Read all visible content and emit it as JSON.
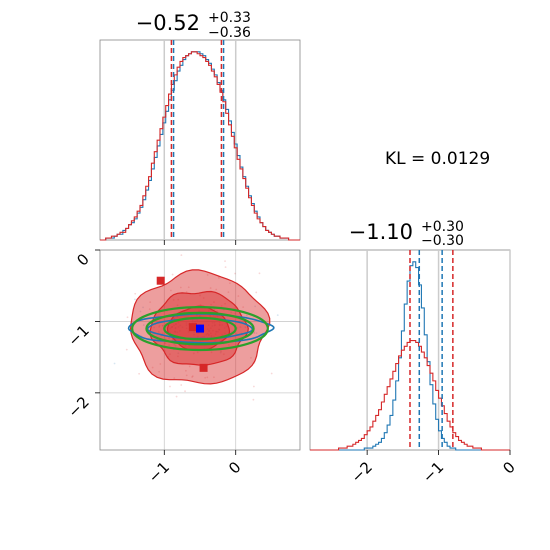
{
  "chart_data": {
    "type": "corner",
    "annotation": "KL = 0.0129",
    "colors": {
      "red": "#d62728",
      "blue": "#1f77b4",
      "green": "#2ca02c",
      "grid": "#cccccc"
    },
    "params": [
      {
        "title_main": "−0.52",
        "title_plus": "+0.33",
        "title_minus": "−0.36",
        "median": -0.52,
        "range": [
          -1.9,
          0.9
        ],
        "ticks": [
          {
            "v": -1,
            "label": "−1"
          },
          {
            "v": 0,
            "label": "0"
          }
        ],
        "red_quantiles": [
          -0.9,
          -0.2
        ],
        "blue_quantiles": [
          -0.87,
          -0.17
        ]
      },
      {
        "title_main": "−1.10",
        "title_plus": "+0.30",
        "title_minus": "−0.30",
        "median": -1.1,
        "range": [
          -2.8,
          0.0
        ],
        "ticks": [
          {
            "v": -2,
            "label": "−2"
          },
          {
            "v": -1,
            "label": "−1"
          },
          {
            "v": 0,
            "label": "0"
          }
        ],
        "red_quantiles": [
          -1.4,
          -0.8
        ],
        "blue_quantiles": [
          -1.27,
          -0.95
        ]
      }
    ],
    "series": [
      {
        "name": "red",
        "color": "#d62728",
        "mean_x": -0.52,
        "mean_y": -1.1,
        "sd_x": 0.34,
        "sd_y": 0.3
      },
      {
        "name": "blue",
        "color": "#1f77b4",
        "mean_x": -0.5,
        "mean_y": -1.1,
        "sd_x": 0.34,
        "sd_y": 0.1
      }
    ],
    "markers": [
      {
        "color": "#d62728",
        "x": -1.05,
        "y": -0.43
      },
      {
        "color": "#d62728",
        "x": -0.6,
        "y": -1.08
      },
      {
        "color": "#d62728",
        "x": -0.45,
        "y": -1.65
      },
      {
        "color": "#0000ff",
        "x": -0.5,
        "y": -1.1
      }
    ],
    "hist1d": {
      "p1": {
        "red": [
          0,
          0,
          1,
          1,
          2,
          2,
          3,
          4,
          4,
          6,
          8,
          10,
          12,
          15,
          18,
          23,
          28,
          33,
          40,
          46,
          52,
          58,
          64,
          70,
          76,
          81,
          86,
          90,
          93,
          95,
          96,
          97,
          98,
          98,
          97,
          96,
          95,
          93,
          91,
          88,
          85,
          81,
          77,
          72,
          66,
          60,
          54,
          48,
          42,
          37,
          32,
          27,
          22,
          18,
          14,
          11,
          9,
          7,
          5,
          4,
          3,
          2,
          2,
          1,
          1,
          1,
          0,
          0,
          0,
          0
        ],
        "blue": [
          0,
          0,
          1,
          1,
          1,
          2,
          3,
          3,
          5,
          6,
          8,
          9,
          11,
          14,
          17,
          21,
          26,
          31,
          37,
          43,
          49,
          55,
          61,
          67,
          73,
          78,
          83,
          88,
          91,
          94,
          96,
          97,
          98,
          98,
          98,
          97,
          96,
          94,
          92,
          89,
          86,
          82,
          78,
          73,
          68,
          62,
          56,
          50,
          44,
          38,
          33,
          28,
          23,
          19,
          15,
          12,
          9,
          7,
          5,
          4,
          3,
          2,
          2,
          1,
          1,
          1,
          0,
          0,
          0,
          0
        ]
      },
      "p2": {
        "red": [
          0,
          0,
          0,
          0,
          0,
          0,
          0,
          0,
          0,
          0,
          1,
          1,
          1,
          2,
          2,
          3,
          4,
          5,
          6,
          8,
          10,
          12,
          15,
          18,
          21,
          25,
          29,
          33,
          37,
          41,
          45,
          49,
          52,
          54,
          56,
          57,
          57,
          56,
          54,
          51,
          48,
          44,
          40,
          36,
          31,
          27,
          23,
          19,
          15,
          12,
          9,
          7,
          5,
          4,
          3,
          2,
          2,
          1,
          1,
          1,
          0,
          0,
          0,
          0,
          0,
          0,
          0,
          0,
          0,
          0
        ],
        "blue": [
          0,
          0,
          0,
          0,
          0,
          0,
          0,
          0,
          0,
          0,
          0,
          0,
          0,
          0,
          0,
          0,
          0,
          0,
          0,
          1,
          1,
          1,
          2,
          3,
          4,
          6,
          9,
          13,
          18,
          26,
          36,
          48,
          62,
          76,
          88,
          96,
          98,
          95,
          86,
          74,
          60,
          46,
          34,
          24,
          16,
          10,
          6,
          4,
          2,
          1,
          1,
          0,
          0,
          0,
          0,
          0,
          0,
          0,
          0,
          0,
          0,
          0,
          0,
          0,
          0,
          0,
          0,
          0,
          0,
          0
        ]
      }
    }
  }
}
